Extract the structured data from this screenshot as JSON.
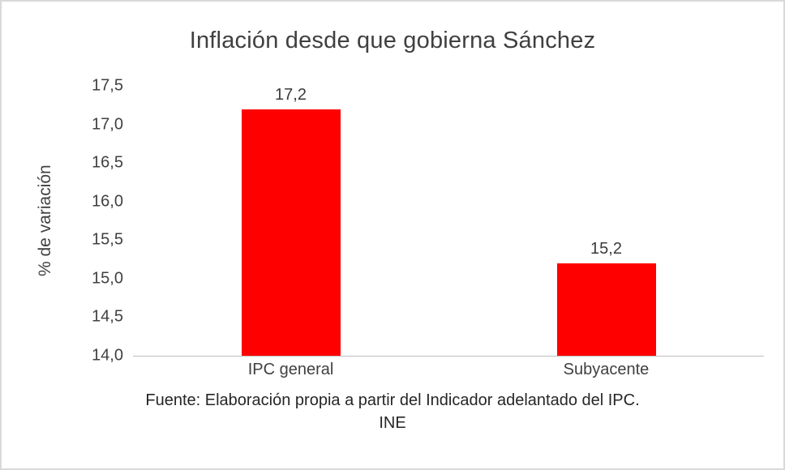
{
  "frame": {
    "background": "#ffffff",
    "border_color": "#d9d9d9"
  },
  "chart_data": {
    "type": "bar",
    "title": "Inflación desde que gobierna Sánchez",
    "ylabel": "% de variación",
    "xlabel": "",
    "categories": [
      "IPC general",
      "Subyacente"
    ],
    "values": [
      17.2,
      15.2
    ],
    "value_labels": [
      "17,2",
      "15,2"
    ],
    "ylim": [
      14.0,
      17.5
    ],
    "ytick_step": 0.5,
    "ytick_labels": [
      "17,5",
      "17,0",
      "16,5",
      "16,0",
      "15,5",
      "15,0",
      "14,5",
      "14,0"
    ],
    "bar_color": "#ff0000",
    "grid": false,
    "legend": false,
    "source_line1": "Fuente: Elaboración propia a partir del Indicador adelantado del IPC.",
    "source_line2": "INE"
  }
}
